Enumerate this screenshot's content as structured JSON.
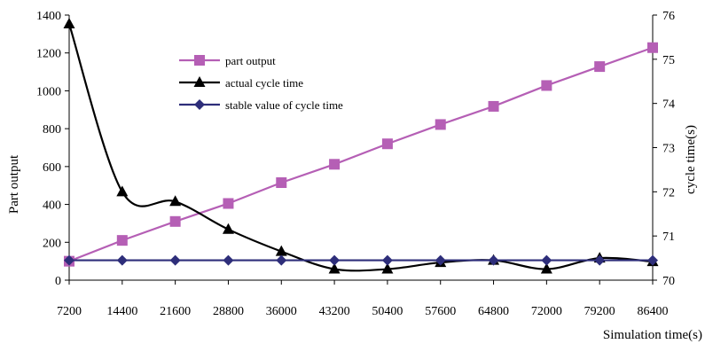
{
  "chart_data": {
    "type": "line",
    "title": "",
    "xlabel": "Simulation time(s)",
    "ylabel_left": "Part output",
    "ylabel_right": "cycle time(s)",
    "categories": [
      "7200",
      "14400",
      "21600",
      "28800",
      "36000",
      "43200",
      "50400",
      "57600",
      "64800",
      "72000",
      "79200",
      "86400"
    ],
    "x": [
      7200,
      14400,
      21600,
      28800,
      36000,
      43200,
      50400,
      57600,
      64800,
      72000,
      79200,
      86400
    ],
    "ylim_left": [
      0,
      1400
    ],
    "yticks_left": [
      0,
      200,
      400,
      600,
      800,
      1000,
      1200,
      1400
    ],
    "ylim_right": [
      70,
      76
    ],
    "yticks_right": [
      70,
      71,
      72,
      73,
      74,
      75,
      76
    ],
    "grid": false,
    "legend_position": "top-center",
    "series": [
      {
        "name": "part output",
        "axis": "left",
        "marker": "square",
        "smooth": false,
        "color": "#B55FB5",
        "values": [
          100,
          210,
          310,
          405,
          515,
          612,
          720,
          822,
          918,
          1028,
          1128,
          1228
        ]
      },
      {
        "name": "actual cycle time",
        "axis": "right",
        "marker": "triangle",
        "smooth": true,
        "color": "#000000",
        "values": [
          75.8,
          72.0,
          71.78,
          71.15,
          70.65,
          70.25,
          70.25,
          70.4,
          70.45,
          70.25,
          70.5,
          70.42
        ]
      },
      {
        "name": "stable value of cycle time",
        "axis": "right",
        "marker": "diamond",
        "smooth": false,
        "color": "#2E2E7A",
        "values": [
          70.45,
          70.45,
          70.45,
          70.45,
          70.45,
          70.45,
          70.45,
          70.45,
          70.45,
          70.45,
          70.45,
          70.45
        ]
      }
    ]
  }
}
